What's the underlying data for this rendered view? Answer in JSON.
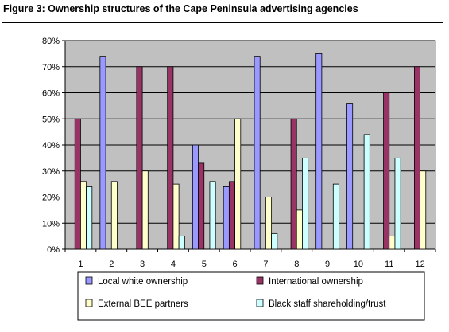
{
  "figure": {
    "title": "Figure 3:  Ownership structures of the Cape Peninsula advertising agencies"
  },
  "chart_data": {
    "type": "bar",
    "title": "",
    "xlabel": "",
    "ylabel": "",
    "categories": [
      "1",
      "2",
      "3",
      "4",
      "5",
      "6",
      "7",
      "8",
      "9",
      "10",
      "11",
      "12"
    ],
    "ylim": [
      0,
      80
    ],
    "yticks": [
      0,
      10,
      20,
      30,
      40,
      50,
      60,
      70,
      80
    ],
    "ytick_labels": [
      "0%",
      "10%",
      "20%",
      "30%",
      "40%",
      "50%",
      "60%",
      "70%",
      "80%"
    ],
    "grid": true,
    "plot_background": "#c0c0c0",
    "legend_position": "bottom",
    "series": [
      {
        "name": "Local white ownership",
        "color": "#9999ff",
        "values": [
          0,
          74,
          0,
          0,
          40,
          24,
          74,
          0,
          75,
          56,
          0,
          0
        ]
      },
      {
        "name": "International ownership",
        "color": "#993366",
        "values": [
          50,
          0,
          70,
          70,
          33,
          26,
          0,
          50,
          0,
          0,
          60,
          70
        ]
      },
      {
        "name": "External BEE partners",
        "color": "#ffffcc",
        "values": [
          26,
          26,
          30,
          25,
          0,
          50,
          20,
          15,
          0,
          0,
          5,
          30
        ]
      },
      {
        "name": "Black staff shareholding/trust",
        "color": "#ccffff",
        "values": [
          24,
          0,
          0,
          5,
          26,
          0,
          6,
          35,
          25,
          44,
          35,
          0
        ]
      }
    ]
  }
}
